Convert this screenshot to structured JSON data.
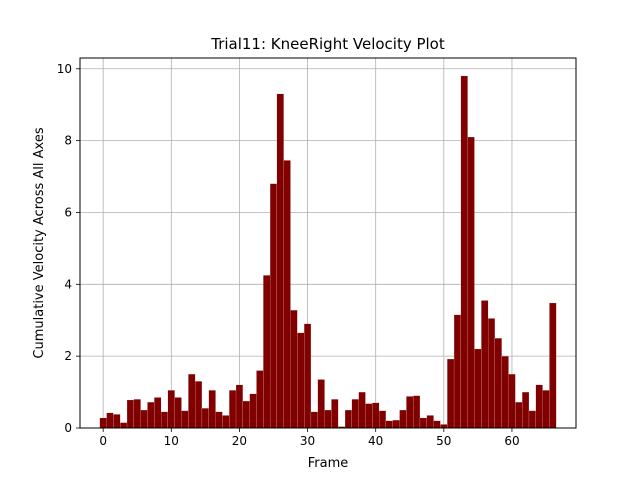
{
  "chart_data": {
    "type": "bar",
    "title": "Trial11: KneeRight Velocity Plot",
    "xlabel": "Frame",
    "ylabel": "Cumulative Velocity Across All Axes",
    "xlim": [
      -3.4,
      69.4
    ],
    "ylim": [
      0,
      10.3
    ],
    "xticks": [
      0,
      10,
      20,
      30,
      40,
      50,
      60
    ],
    "yticks": [
      0,
      2,
      4,
      6,
      8,
      10
    ],
    "grid": true,
    "bar_color": "#800000",
    "x": [
      0,
      1,
      2,
      3,
      4,
      5,
      6,
      7,
      8,
      9,
      10,
      11,
      12,
      13,
      14,
      15,
      16,
      17,
      18,
      19,
      20,
      21,
      22,
      23,
      24,
      25,
      26,
      27,
      28,
      29,
      30,
      31,
      32,
      33,
      34,
      35,
      36,
      37,
      38,
      39,
      40,
      41,
      42,
      43,
      44,
      45,
      46,
      47,
      48,
      49,
      50,
      51,
      52,
      53,
      54,
      55,
      56,
      57,
      58,
      59,
      60,
      61,
      62,
      63,
      64,
      65,
      66
    ],
    "values": [
      0.28,
      0.42,
      0.38,
      0.15,
      0.78,
      0.8,
      0.5,
      0.72,
      0.85,
      0.45,
      1.05,
      0.85,
      0.48,
      1.5,
      1.3,
      0.55,
      1.05,
      0.45,
      0.35,
      1.05,
      1.2,
      0.75,
      0.95,
      1.6,
      4.25,
      6.8,
      9.3,
      7.45,
      3.28,
      2.65,
      2.9,
      0.45,
      1.35,
      0.5,
      0.8,
      0.04,
      0.5,
      0.8,
      1.0,
      0.68,
      0.7,
      0.48,
      0.2,
      0.22,
      0.5,
      0.88,
      0.9,
      0.28,
      0.35,
      0.2,
      0.1,
      1.92,
      3.15,
      9.8,
      8.1,
      2.2,
      3.55,
      3.05,
      2.5,
      2.0,
      1.5,
      0.72,
      1.0,
      0.48,
      1.2,
      1.05,
      3.48
    ]
  }
}
